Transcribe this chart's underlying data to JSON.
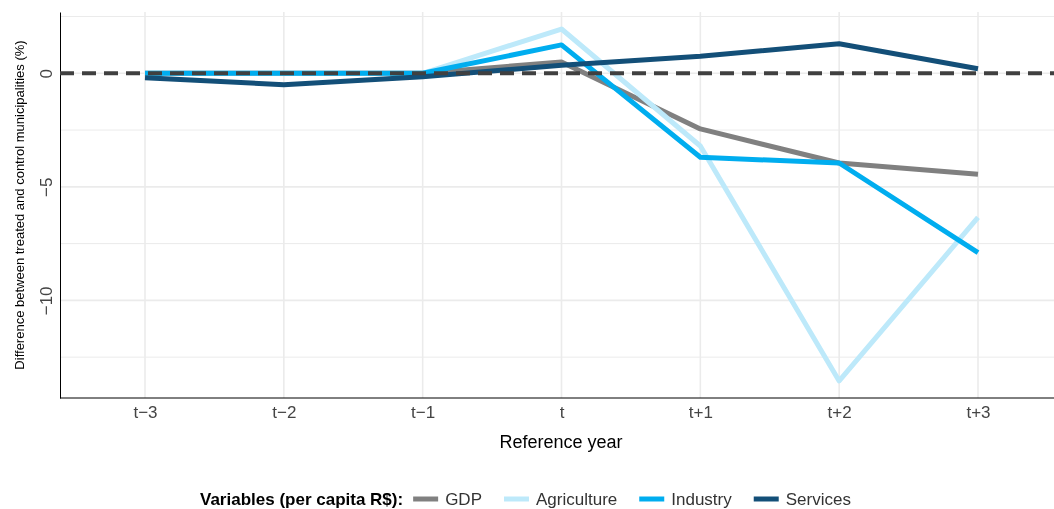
{
  "chart_data": {
    "type": "line",
    "xlabel": "Reference year",
    "ylabel": "Difference between treated and control municipalities (%)",
    "legend_title": "Variables (per capita R$):",
    "categories": [
      "t−3",
      "t−2",
      "t−1",
      "t",
      "t+1",
      "t+2",
      "t+3"
    ],
    "series": [
      {
        "name": "GDP",
        "color": "#808080",
        "values": [
          0,
          0,
          0,
          0.5,
          -2.45,
          -3.95,
          -4.45
        ]
      },
      {
        "name": "Agriculture",
        "color": "#bde9fa",
        "values": [
          0,
          0,
          0,
          1.95,
          -3.2,
          -13.55,
          -6.35
        ]
      },
      {
        "name": "Industry",
        "color": "#00adef",
        "values": [
          0,
          0,
          0,
          1.25,
          -3.7,
          -3.95,
          -7.9
        ]
      },
      {
        "name": "Services",
        "color": "#134f78",
        "values": [
          -0.2,
          -0.5,
          -0.15,
          0.35,
          0.75,
          1.3,
          0.2
        ]
      }
    ],
    "ylim": [
      -14.3,
      2.7
    ],
    "yticks": [
      {
        "value": -12.5,
        "label": null
      },
      -10,
      {
        "value": -7.5,
        "label": null
      },
      -5,
      {
        "value": -2.5,
        "label": null
      },
      0,
      {
        "value": 2.5,
        "label": null
      }
    ],
    "grid": true,
    "legend": "bottom",
    "marker": "none",
    "line_style": "solid",
    "ref_lines": [
      {
        "axis": "y",
        "value": 0,
        "color": "#404040",
        "line_style": "dashed"
      }
    ]
  }
}
